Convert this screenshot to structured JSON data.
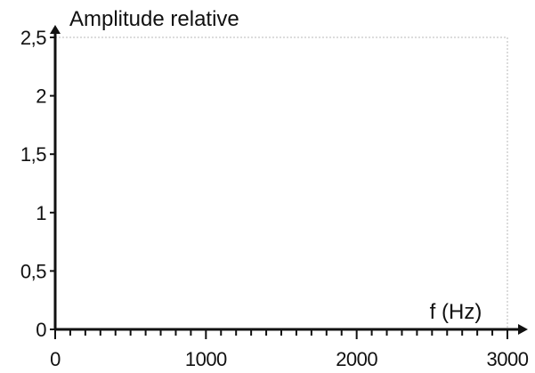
{
  "chart_data": {
    "type": "line",
    "title": "",
    "xlabel": "f (Hz)",
    "ylabel": "Amplitude relative",
    "xlim": [
      0,
      3000
    ],
    "ylim": [
      0,
      2.5
    ],
    "x_ticks": [
      0,
      1000,
      2000,
      3000
    ],
    "x_tick_labels": [
      "0",
      "1000",
      "2000",
      "3000"
    ],
    "y_ticks": [
      0,
      0.5,
      1,
      1.5,
      2,
      2.5
    ],
    "y_tick_labels": [
      "0",
      "0,5",
      "1",
      "1,5",
      "2",
      "2,5"
    ],
    "x_minor_step": 100,
    "grid": false,
    "series": []
  }
}
